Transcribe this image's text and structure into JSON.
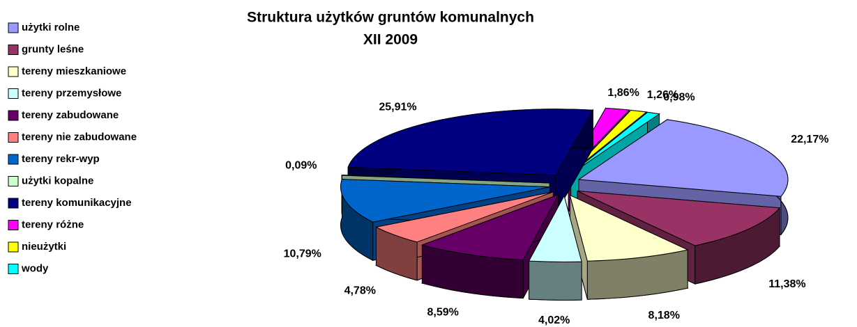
{
  "chart_data": {
    "type": "pie",
    "title": "Struktura użytków gruntów komunalnych",
    "subtitle": "XII 2009",
    "categories": [
      "użytki rolne",
      "grunty leśne",
      "tereny mieszkaniowe",
      "tereny przemysłowe",
      "tereny zabudowane",
      "tereny nie zabudowane",
      "tereny rekr-wyp",
      "użytki kopalne",
      "tereny komunikacyjne",
      "tereny różne",
      "nieużytki",
      "wody"
    ],
    "values": [
      22.17,
      11.38,
      8.18,
      4.02,
      8.59,
      4.78,
      10.79,
      0.09,
      25.91,
      1.86,
      1.26,
      0.98
    ],
    "value_labels": [
      "22,17%",
      "11,38%",
      "8,18%",
      "4,02%",
      "8,59%",
      "4,78%",
      "10,79%",
      "0,09%",
      "25,91%",
      "1,86%",
      "1,26%",
      "0,98%"
    ],
    "colors": [
      "#9999ff",
      "#993366",
      "#ffffcc",
      "#ccffff",
      "#660066",
      "#ff8080",
      "#0066cc",
      "#ccffcc",
      "#000080",
      "#ff00ff",
      "#ffff00",
      "#00ffff"
    ],
    "legend": "left"
  }
}
